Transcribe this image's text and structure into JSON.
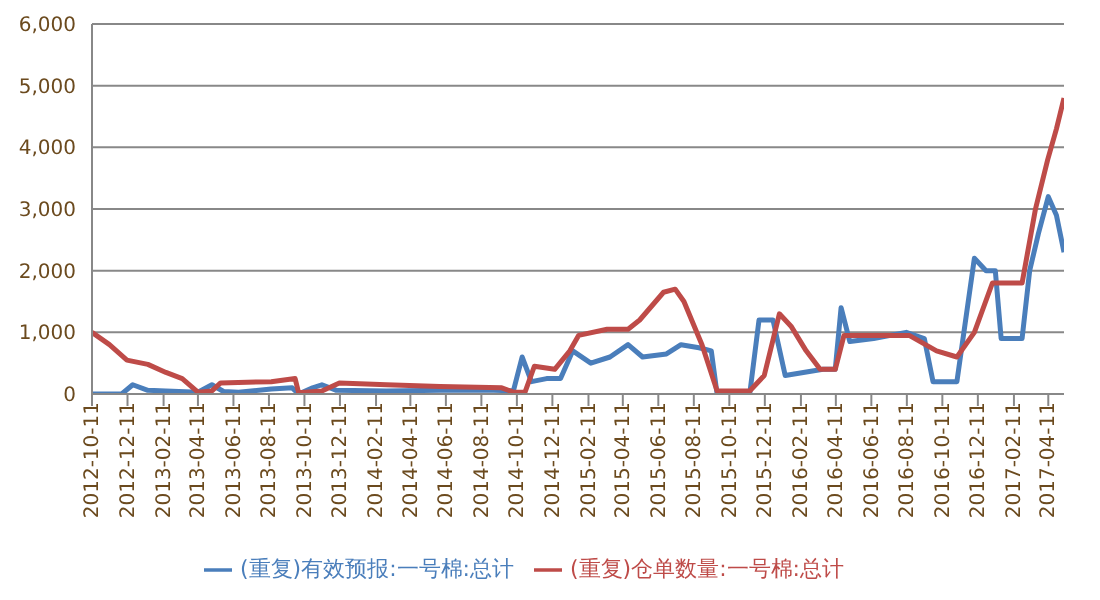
{
  "chart_data": {
    "type": "line",
    "legend": "bottom",
    "grid": "y",
    "marker": "none",
    "line_style": "solid",
    "xlim": [
      "2012-10-11",
      "2017-05-08"
    ],
    "xticks": [
      "2012-10-11",
      "2012-12-11",
      "2013-02-11",
      "2013-04-11",
      "2013-06-11",
      "2013-08-11",
      "2013-10-11",
      "2013-12-11",
      "2014-02-11",
      "2014-04-11",
      "2014-06-11",
      "2014-08-11",
      "2014-10-11",
      "2014-12-11",
      "2015-02-11",
      "2015-04-11",
      "2015-06-11",
      "2015-08-11",
      "2015-10-11",
      "2015-12-11",
      "2016-02-11",
      "2016-04-11",
      "2016-06-11",
      "2016-08-11",
      "2016-10-11",
      "2016-12-11",
      "2017-02-11",
      "2017-04-11"
    ],
    "ylim": [
      0,
      6000
    ],
    "yticks": [
      0,
      {
        "value": 1000,
        "label": "1,000"
      },
      {
        "value": 2000,
        "label": "2,000"
      },
      {
        "value": 3000,
        "label": "3,000"
      },
      {
        "value": 4000,
        "label": "4,000"
      },
      {
        "value": 5000,
        "label": "5,000"
      },
      {
        "value": 6000,
        "label": "6,000"
      }
    ],
    "series": [
      {
        "name": "(重复)有效预报:一号棉:总计",
        "color": "#4a7ebb",
        "x": [
          "2012-10-11",
          "2012-12-01",
          "2012-12-20",
          "2013-01-15",
          "2013-02-15",
          "2013-04-11",
          "2013-05-05",
          "2013-05-25",
          "2013-06-20",
          "2013-08-15",
          "2013-09-20",
          "2013-10-01",
          "2013-10-25",
          "2013-11-10",
          "2013-12-05",
          "2014-03-01",
          "2014-06-01",
          "2014-09-01",
          "2014-10-05",
          "2014-10-20",
          "2014-11-05",
          "2014-12-01",
          "2014-12-25",
          "2015-01-15",
          "2015-02-15",
          "2015-03-20",
          "2015-04-20",
          "2015-05-15",
          "2015-06-25",
          "2015-07-20",
          "2015-08-20",
          "2015-09-10",
          "2015-09-20",
          "2015-11-15",
          "2015-12-01",
          "2015-12-25",
          "2016-01-15",
          "2016-03-20",
          "2016-04-10",
          "2016-04-20",
          "2016-05-05",
          "2016-06-15",
          "2016-08-10",
          "2016-09-10",
          "2016-09-25",
          "2016-11-05",
          "2016-12-05",
          "2016-12-25",
          "2017-01-10",
          "2017-01-20",
          "2017-02-25",
          "2017-03-10",
          "2017-03-25",
          "2017-04-11",
          "2017-04-25",
          "2017-05-08"
        ],
        "values": [
          0,
          0,
          150,
          60,
          50,
          30,
          150,
          40,
          30,
          80,
          100,
          0,
          100,
          150,
          60,
          50,
          60,
          60,
          50,
          600,
          200,
          250,
          250,
          700,
          500,
          600,
          800,
          600,
          650,
          800,
          750,
          700,
          0,
          0,
          1200,
          1200,
          300,
          400,
          400,
          1400,
          850,
          900,
          1000,
          900,
          200,
          200,
          2200,
          2000,
          2000,
          900,
          900,
          2000,
          2600,
          3200,
          2900,
          2300
        ]
      },
      {
        "name": "(重复)仓单数量:一号棉:总计",
        "color": "#be4b48",
        "x": [
          "2012-10-11",
          "2012-11-10",
          "2012-12-10",
          "2013-01-15",
          "2013-02-15",
          "2013-03-15",
          "2013-04-11",
          "2013-05-05",
          "2013-05-20",
          "2013-08-15",
          "2013-09-25",
          "2013-10-01",
          "2013-11-10",
          "2013-12-10",
          "2014-03-01",
          "2014-06-01",
          "2014-09-15",
          "2014-10-05",
          "2014-10-25",
          "2014-11-10",
          "2014-12-15",
          "2015-01-10",
          "2015-01-25",
          "2015-03-15",
          "2015-04-20",
          "2015-05-10",
          "2015-06-20",
          "2015-07-10",
          "2015-07-25",
          "2015-08-25",
          "2015-09-20",
          "2015-11-15",
          "2015-12-10",
          "2016-01-05",
          "2016-01-25",
          "2016-02-20",
          "2016-03-15",
          "2016-04-10",
          "2016-04-25",
          "2016-06-15",
          "2016-08-15",
          "2016-10-01",
          "2016-11-05",
          "2016-12-05",
          "2017-01-05",
          "2017-02-25",
          "2017-03-20",
          "2017-04-10",
          "2017-04-25",
          "2017-05-08"
        ],
        "values": [
          1000,
          800,
          550,
          480,
          350,
          250,
          30,
          50,
          180,
          200,
          250,
          20,
          50,
          180,
          150,
          120,
          100,
          30,
          30,
          450,
          400,
          700,
          950,
          1050,
          1050,
          1200,
          1650,
          1700,
          1500,
          800,
          50,
          50,
          300,
          1300,
          1100,
          700,
          400,
          400,
          950,
          950,
          950,
          700,
          600,
          1000,
          1800,
          1800,
          3000,
          3800,
          4300,
          4800
        ]
      }
    ]
  }
}
